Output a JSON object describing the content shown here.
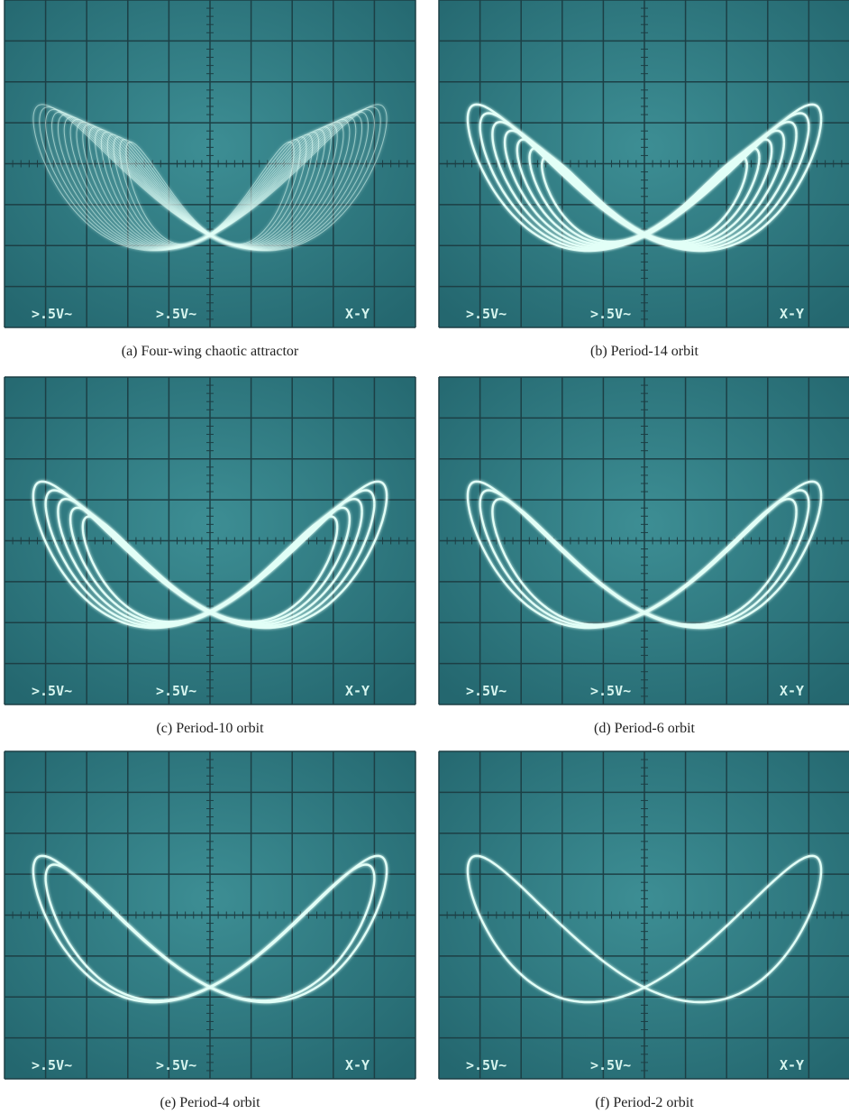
{
  "panels": [
    {
      "caption": "(a) Four-wing chaotic attractor",
      "screen_labels": [
        ">.5V~",
        ">.5V~",
        "X-Y"
      ]
    },
    {
      "caption": "(b) Period-14 orbit",
      "screen_labels": [
        ">.5V~",
        ">.5V~",
        "X-Y"
      ]
    },
    {
      "caption": "(c) Period-10 orbit",
      "screen_labels": [
        ">.5V~",
        ">.5V~",
        "X-Y"
      ]
    },
    {
      "caption": "(d) Period-6 orbit",
      "screen_labels": [
        ">.5V~",
        ">.5V~",
        "X-Y"
      ]
    },
    {
      "caption": "(e) Period-4 orbit",
      "screen_labels": [
        ">.5V~",
        ">.5V~",
        "X-Y"
      ]
    },
    {
      "caption": "(f) Period-2 orbit",
      "screen_labels": [
        ">.5V~",
        ">.5V~",
        "X-Y"
      ]
    }
  ]
}
